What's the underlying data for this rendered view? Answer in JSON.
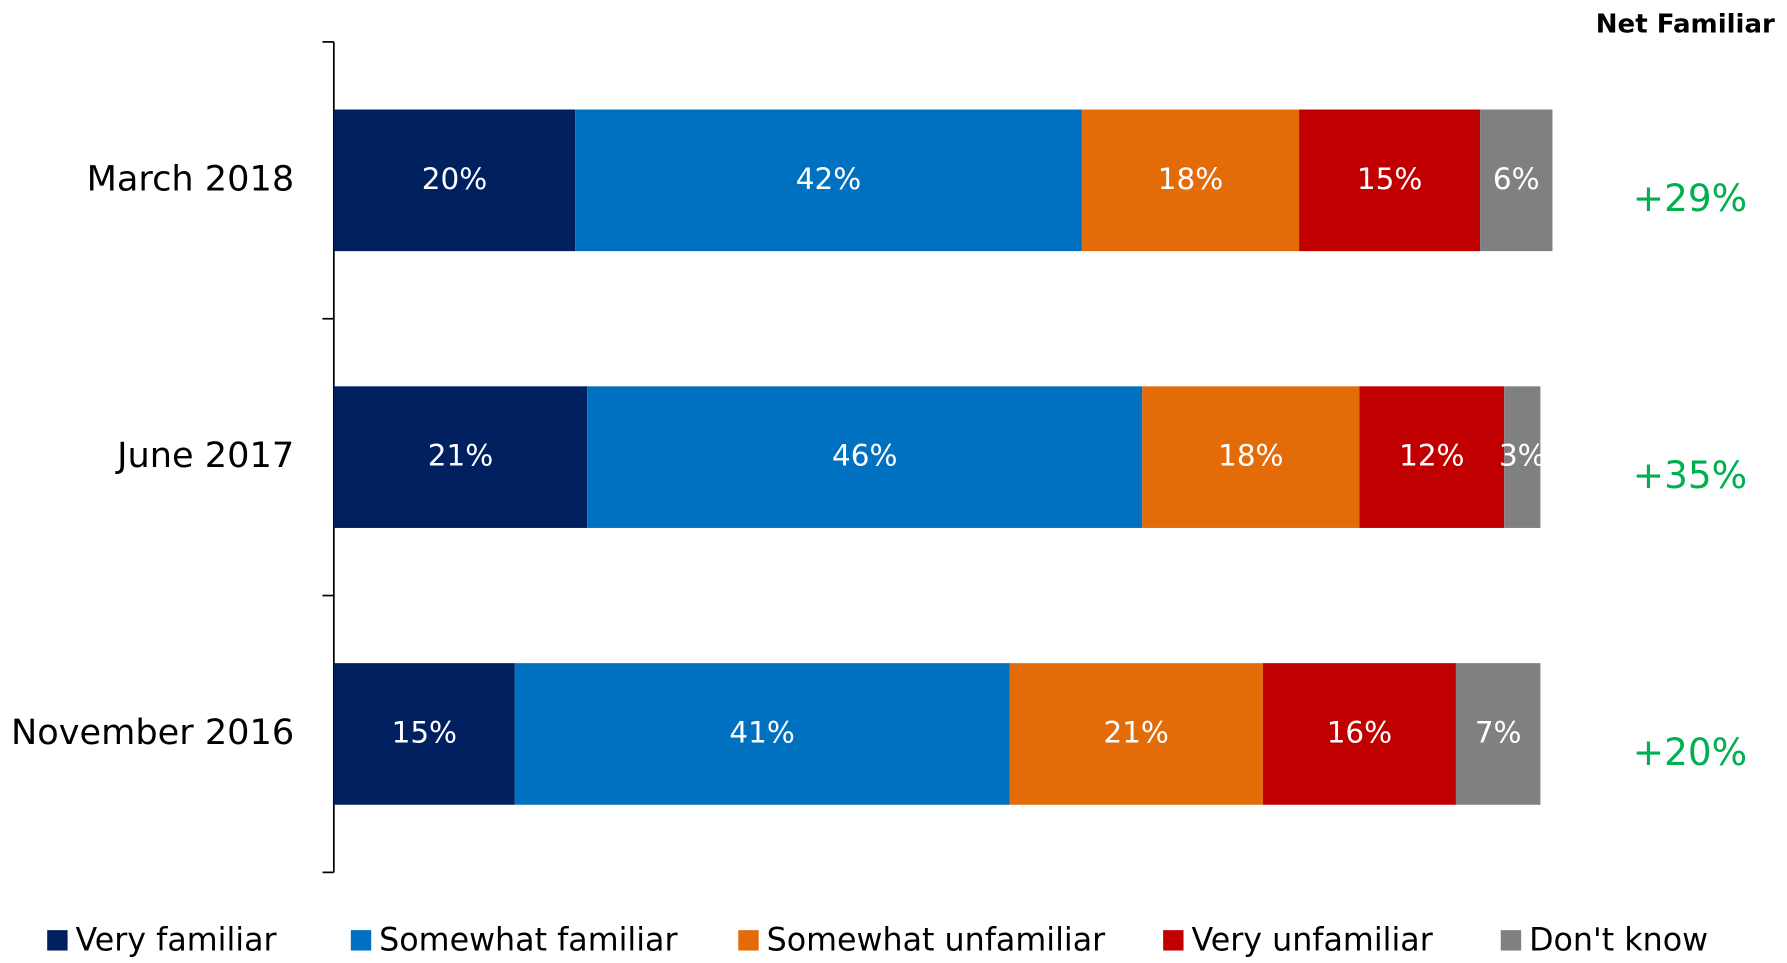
{
  "chart_data": {
    "type": "bar",
    "orientation": "horizontal",
    "stacked": true,
    "categories": [
      "March 2018",
      "June 2017",
      "November 2016"
    ],
    "xlim": [
      0,
      100
    ],
    "series": [
      {
        "name": "Very familiar",
        "color": "#002060",
        "values": [
          20,
          21,
          15
        ],
        "value_labels": [
          "20%",
          "21%",
          "15%"
        ]
      },
      {
        "name": "Somewhat familiar",
        "color": "#0070c0",
        "values": [
          42,
          46,
          41
        ],
        "value_labels": [
          "42%",
          "46%",
          "41%"
        ]
      },
      {
        "name": "Somewhat unfamiliar",
        "color": "#e36c09",
        "values": [
          18,
          18,
          21
        ],
        "value_labels": [
          "18%",
          "18%",
          "21%"
        ]
      },
      {
        "name": "Very unfamiliar",
        "color": "#c00000",
        "values": [
          15,
          12,
          16
        ],
        "value_labels": [
          "15%",
          "12%",
          "16%"
        ]
      },
      {
        "name": "Don't know",
        "color": "#808080",
        "values": [
          6,
          3,
          7
        ],
        "value_labels": [
          "6%",
          "3%",
          "7%"
        ]
      }
    ],
    "net": {
      "title": "Net Familiar",
      "color": "#00b050",
      "values": [
        29,
        35,
        20
      ],
      "value_labels": [
        "+29%",
        "+35%",
        "+20%"
      ]
    },
    "legend": "bottom"
  }
}
